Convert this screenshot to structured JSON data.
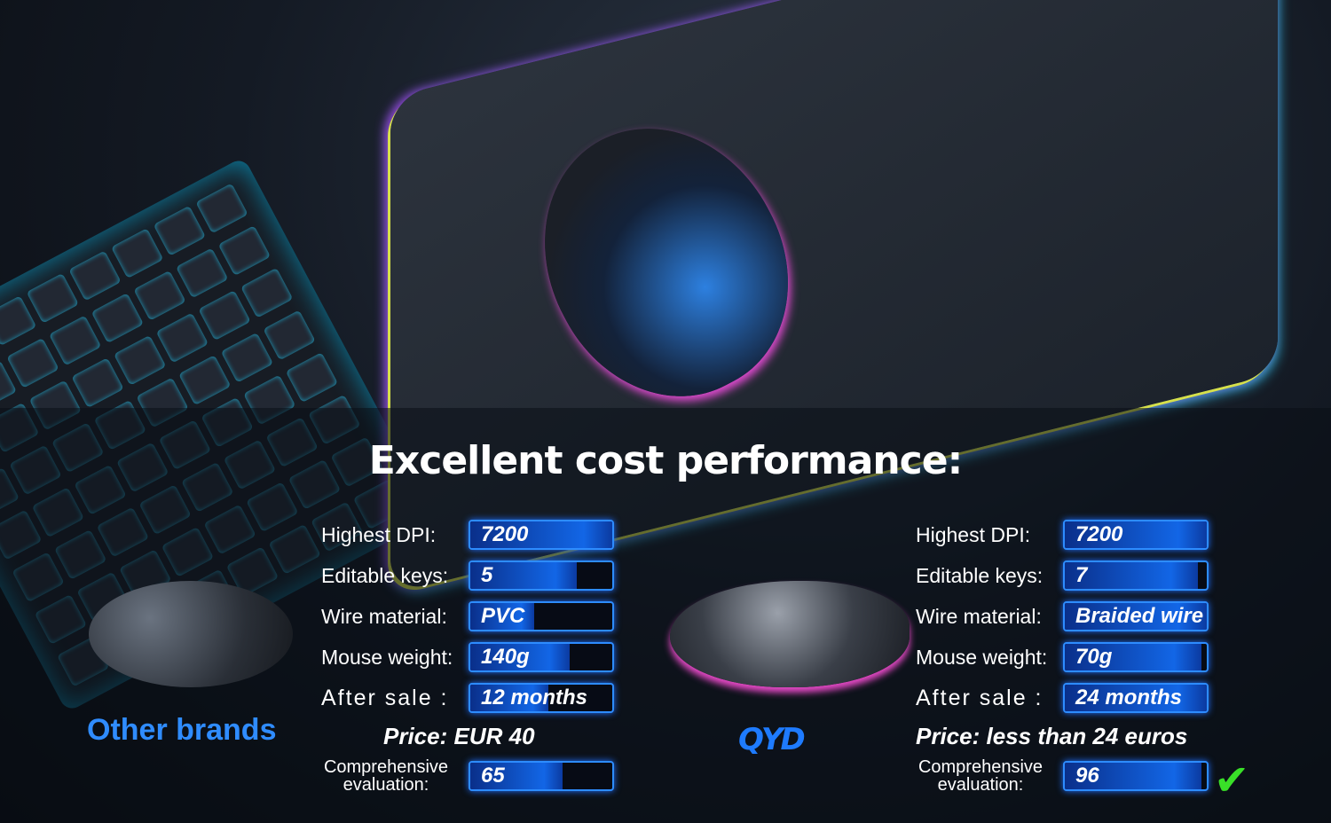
{
  "title": "Excellent cost performance:",
  "colors": {
    "accent": "#1266e6",
    "brand_text": "#2f8cff",
    "check": "#39e028"
  },
  "left": {
    "brand": "Other brands",
    "rows": [
      {
        "label": "Highest DPI:",
        "value": "7200",
        "fill": 1.0
      },
      {
        "label": "Editable keys:",
        "value": "5",
        "fill": 0.75
      },
      {
        "label": "Wire material:",
        "value": "PVC",
        "fill": 0.45
      },
      {
        "label": "Mouse weight:",
        "value": "140g",
        "fill": 0.7
      },
      {
        "label": "After sale :",
        "value": "12 months",
        "fill": 0.55
      }
    ],
    "price": "Price: EUR 40",
    "eval_label": "Comprehensive evaluation:",
    "eval_value": "65",
    "eval_fill": 0.65
  },
  "right": {
    "brand": "QYD",
    "rows": [
      {
        "label": "Highest DPI:",
        "value": "7200",
        "fill": 1.0
      },
      {
        "label": "Editable keys:",
        "value": "7",
        "fill": 0.94
      },
      {
        "label": "Wire material:",
        "value": "Braided wire",
        "fill": 1.0
      },
      {
        "label": "Mouse weight:",
        "value": "70g",
        "fill": 0.96
      },
      {
        "label": "After sale :",
        "value": "24 months",
        "fill": 1.0
      }
    ],
    "price": "Price: less than 24 euros",
    "eval_label": "Comprehensive evaluation:",
    "eval_value": "96",
    "eval_fill": 0.96,
    "check_icon": "check-mark-icon"
  }
}
